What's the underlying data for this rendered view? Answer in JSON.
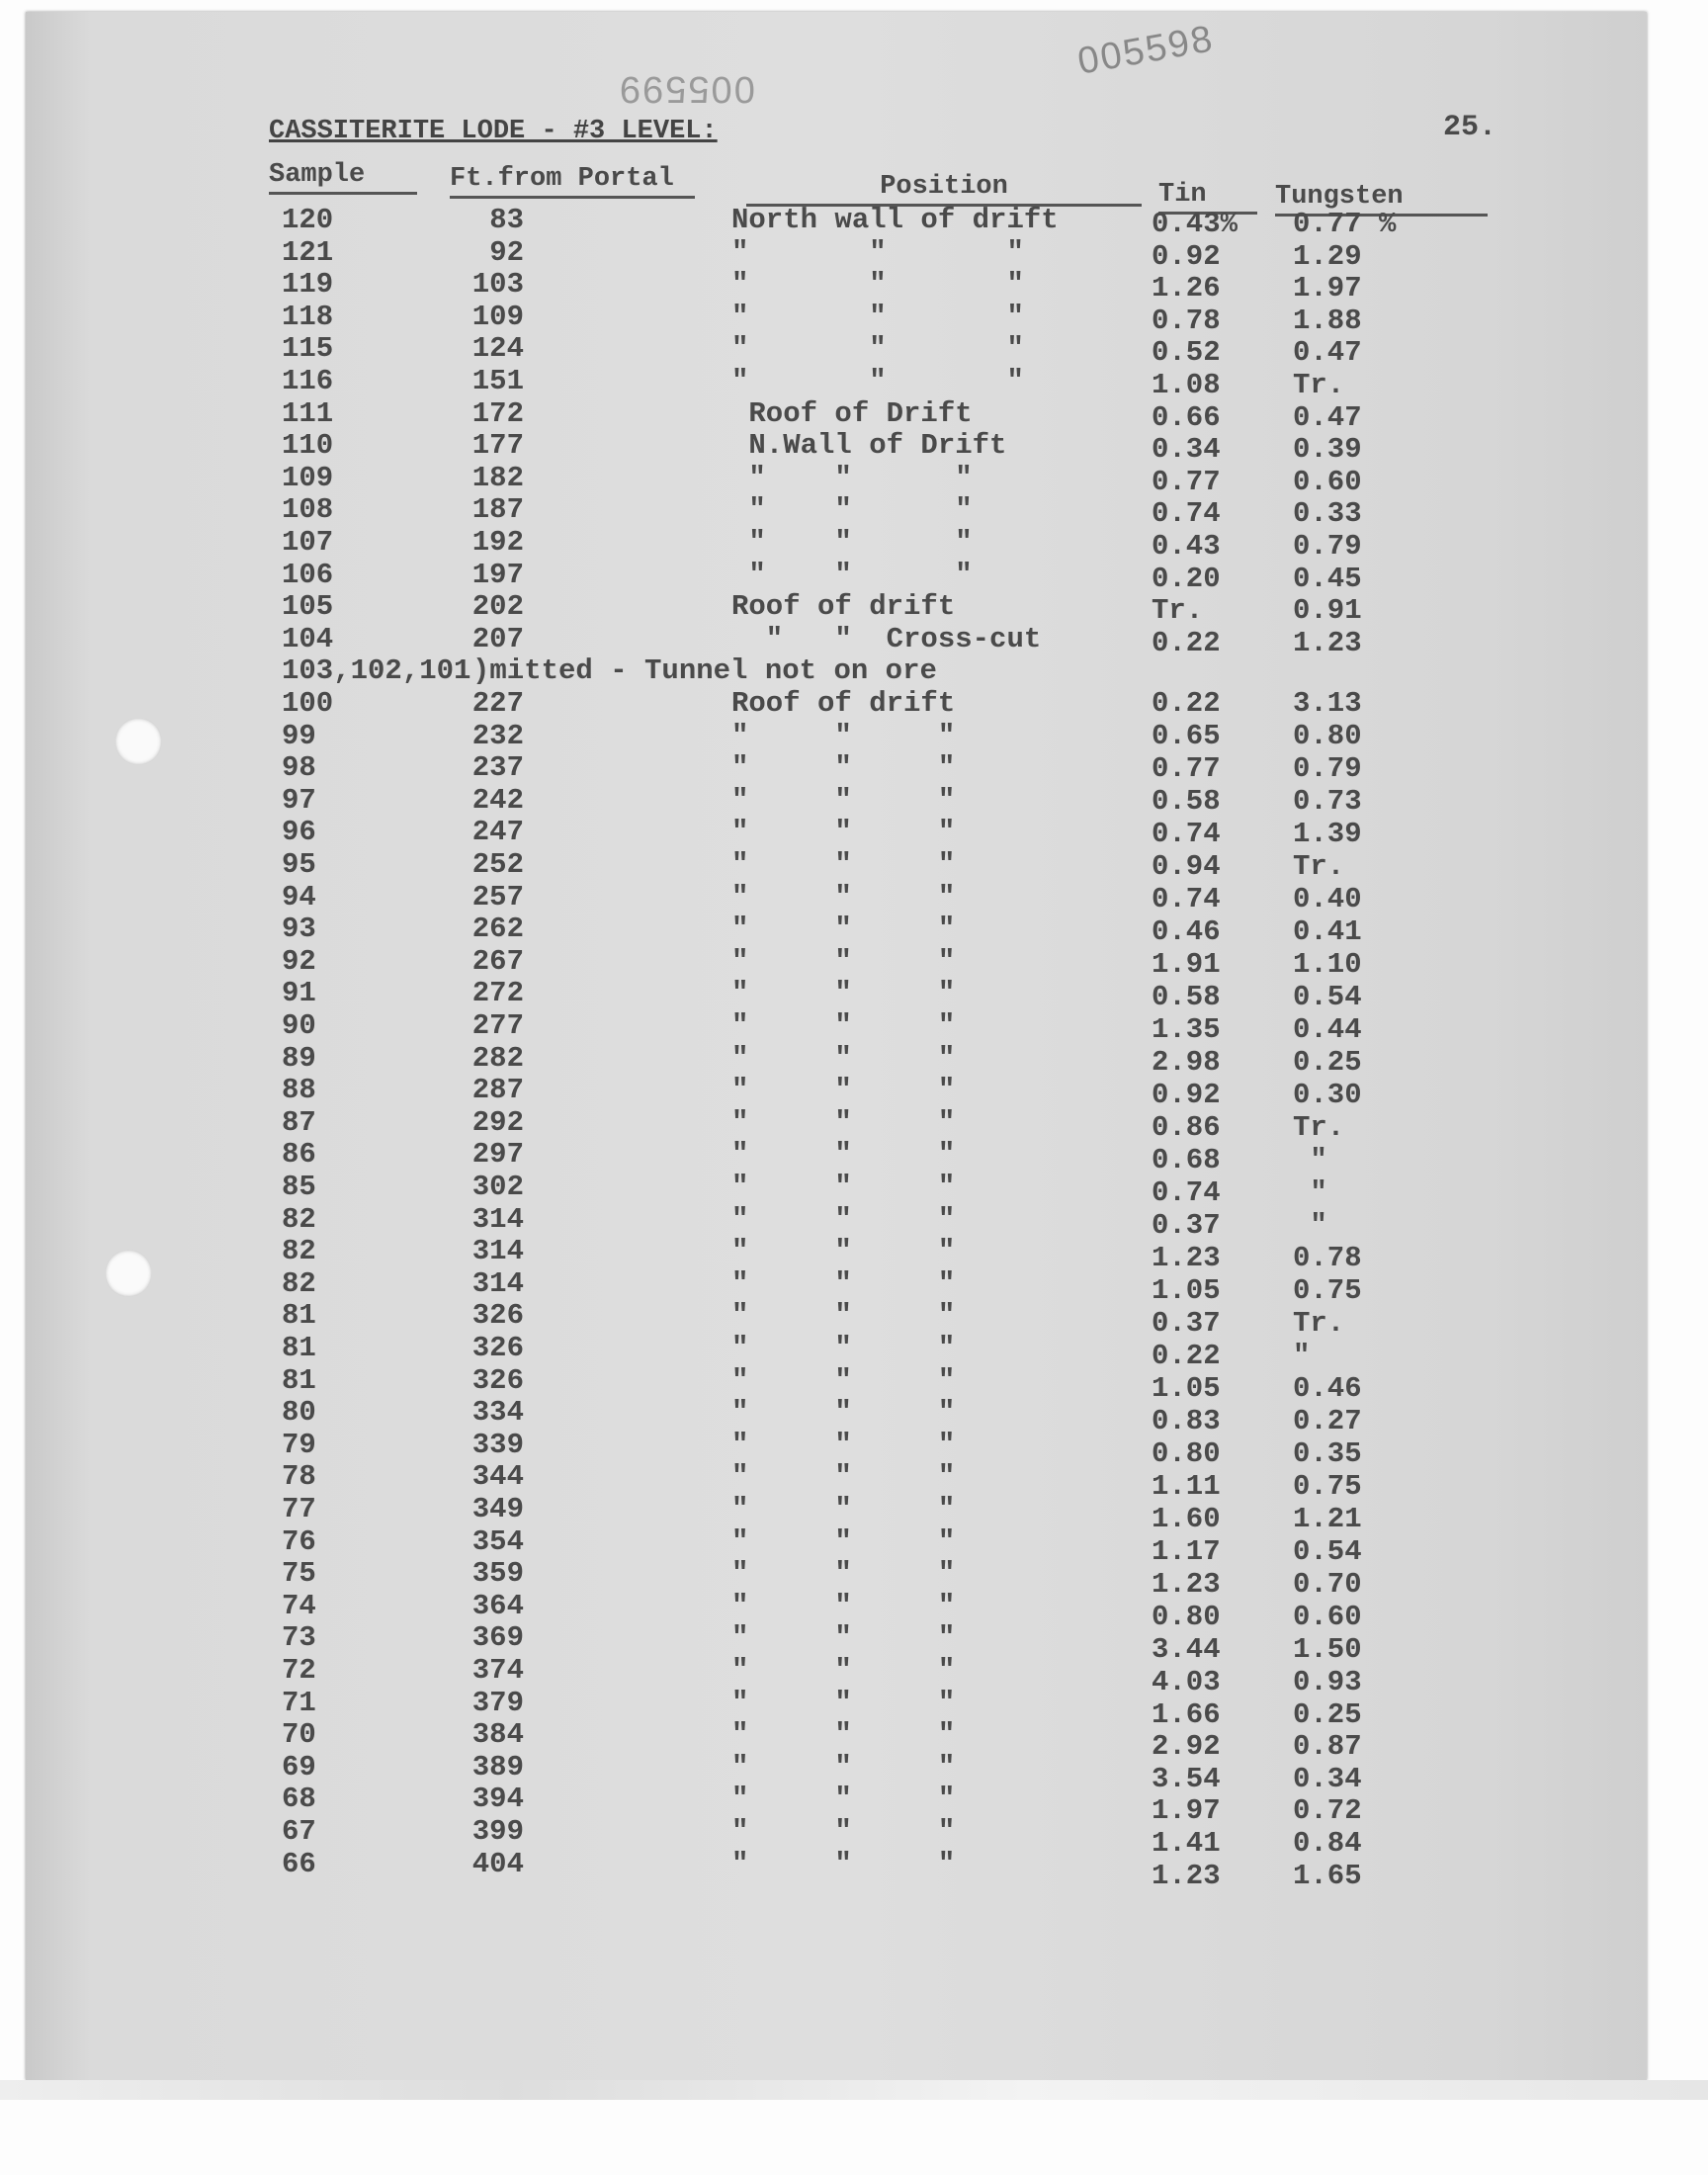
{
  "stamps": {
    "top_number": "005598",
    "mirrored_number": "005599"
  },
  "page_number": "25.",
  "title": "CASSITERITE LODE - #3 LEVEL:",
  "headers": {
    "sample": "Sample",
    "ft": "Ft.from Portal",
    "position": "Position",
    "tin": "Tin",
    "tungsten": "Tungsten"
  },
  "rows": [
    {
      "sample": "120",
      "ft": "83",
      "position": "North wall of drift",
      "tin": "0.43%",
      "tungsten": "0.77 %"
    },
    {
      "sample": "121",
      "ft": "92",
      "position": "\"       \"       \"",
      "tin": "0.92",
      "tungsten": "1.29"
    },
    {
      "sample": "119",
      "ft": "103",
      "position": "\"       \"       \"",
      "tin": "1.26",
      "tungsten": "1.97"
    },
    {
      "sample": "118",
      "ft": "109",
      "position": "\"       \"       \"",
      "tin": "0.78",
      "tungsten": "1.88"
    },
    {
      "sample": "115",
      "ft": "124",
      "position": "\"       \"       \"",
      "tin": "0.52",
      "tungsten": "0.47"
    },
    {
      "sample": "116",
      "ft": "151",
      "position": "\"       \"       \"",
      "tin": "1.08",
      "tungsten": "Tr."
    },
    {
      "sample": "111",
      "ft": "172",
      "position": " Roof of Drift",
      "tin": "0.66",
      "tungsten": "0.47"
    },
    {
      "sample": "110",
      "ft": "177",
      "position": " N.Wall of Drift",
      "tin": "0.34",
      "tungsten": "0.39"
    },
    {
      "sample": "109",
      "ft": "182",
      "position": " \"    \"      \"",
      "tin": "0.77",
      "tungsten": "0.60"
    },
    {
      "sample": "108",
      "ft": "187",
      "position": " \"    \"      \"",
      "tin": "0.74",
      "tungsten": "0.33"
    },
    {
      "sample": "107",
      "ft": "192",
      "position": " \"    \"      \"",
      "tin": "0.43",
      "tungsten": "0.79"
    },
    {
      "sample": "106",
      "ft": "197",
      "position": " \"    \"      \"",
      "tin": "0.20",
      "tungsten": "0.45"
    },
    {
      "sample": "105",
      "ft": "202",
      "position": "Roof of drift",
      "tin": "Tr.",
      "tungsten": "0.91"
    },
    {
      "sample": "104",
      "ft": "207",
      "position": "  \"   \"  Cross-cut",
      "tin": "0.22",
      "tungsten": "1.23"
    },
    {
      "sample": "103,102,101",
      "omitted": ")mitted - Tunnel not on ore"
    },
    {
      "sample": "100",
      "ft": "227",
      "position": "Roof of drift",
      "tin": "0.22",
      "tungsten": "3.13"
    },
    {
      "sample": "99",
      "ft": "232",
      "position": "\"     \"     \"",
      "tin": "0.65",
      "tungsten": "0.80"
    },
    {
      "sample": "98",
      "ft": "237",
      "position": "\"     \"     \"",
      "tin": "0.77",
      "tungsten": "0.79"
    },
    {
      "sample": "97",
      "ft": "242",
      "position": "\"     \"     \"",
      "tin": "0.58",
      "tungsten": "0.73"
    },
    {
      "sample": "96",
      "ft": "247",
      "position": "\"     \"     \"",
      "tin": "0.74",
      "tungsten": "1.39"
    },
    {
      "sample": "95",
      "ft": "252",
      "position": "\"     \"     \"",
      "tin": "0.94",
      "tungsten": "Tr."
    },
    {
      "sample": "94",
      "ft": "257",
      "position": "\"     \"     \"",
      "tin": "0.74",
      "tungsten": "0.40"
    },
    {
      "sample": "93",
      "ft": "262",
      "position": "\"     \"     \"",
      "tin": "0.46",
      "tungsten": "0.41"
    },
    {
      "sample": "92",
      "ft": "267",
      "position": "\"     \"     \"",
      "tin": "1.91",
      "tungsten": "1.10"
    },
    {
      "sample": "91",
      "ft": "272",
      "position": "\"     \"     \"",
      "tin": "0.58",
      "tungsten": "0.54"
    },
    {
      "sample": "90",
      "ft": "277",
      "position": "\"     \"     \"",
      "tin": "1.35",
      "tungsten": "0.44"
    },
    {
      "sample": "89",
      "ft": "282",
      "position": "\"     \"     \"",
      "tin": "2.98",
      "tungsten": "0.25"
    },
    {
      "sample": "88",
      "ft": "287",
      "position": "\"     \"     \"",
      "tin": "0.92",
      "tungsten": "0.30"
    },
    {
      "sample": "87",
      "ft": "292",
      "position": "\"     \"     \"",
      "tin": "0.86",
      "tungsten": "Tr."
    },
    {
      "sample": "86",
      "ft": "297",
      "position": "\"     \"     \"",
      "tin": "0.68",
      "tungsten": " \""
    },
    {
      "sample": "85",
      "ft": "302",
      "position": "\"     \"     \"",
      "tin": "0.74",
      "tungsten": " \""
    },
    {
      "sample": "82",
      "ft": "314",
      "position": "\"     \"     \"",
      "tin": "0.37",
      "tungsten": " \""
    },
    {
      "sample": "82",
      "ft": "314",
      "position": "\"     \"     \"",
      "tin": "1.23",
      "tungsten": "0.78"
    },
    {
      "sample": "82",
      "ft": "314",
      "position": "\"     \"     \"",
      "tin": "1.05",
      "tungsten": "0.75"
    },
    {
      "sample": "81",
      "ft": "326",
      "position": "\"     \"     \"",
      "tin": "0.37",
      "tungsten": "Tr."
    },
    {
      "sample": "81",
      "ft": "326",
      "position": "\"     \"     \"",
      "tin": "0.22",
      "tungsten": "\""
    },
    {
      "sample": "81",
      "ft": "326",
      "position": "\"     \"     \"",
      "tin": "1.05",
      "tungsten": "0.46"
    },
    {
      "sample": "80",
      "ft": "334",
      "position": "\"     \"     \"",
      "tin": "0.83",
      "tungsten": "0.27"
    },
    {
      "sample": "79",
      "ft": "339",
      "position": "\"     \"     \"",
      "tin": "0.80",
      "tungsten": "0.35"
    },
    {
      "sample": "78",
      "ft": "344",
      "position": "\"     \"     \"",
      "tin": "1.11",
      "tungsten": "0.75"
    },
    {
      "sample": "77",
      "ft": "349",
      "position": "\"     \"     \"",
      "tin": "1.60",
      "tungsten": "1.21"
    },
    {
      "sample": "76",
      "ft": "354",
      "position": "\"     \"     \"",
      "tin": "1.17",
      "tungsten": "0.54"
    },
    {
      "sample": "75",
      "ft": "359",
      "position": "\"     \"     \"",
      "tin": "1.23",
      "tungsten": "0.70"
    },
    {
      "sample": "74",
      "ft": "364",
      "position": "\"     \"     \"",
      "tin": "0.80",
      "tungsten": "0.60"
    },
    {
      "sample": "73",
      "ft": "369",
      "position": "\"     \"     \"",
      "tin": "3.44",
      "tungsten": "1.50"
    },
    {
      "sample": "72",
      "ft": "374",
      "position": "\"     \"     \"",
      "tin": "4.03",
      "tungsten": "0.93"
    },
    {
      "sample": "71",
      "ft": "379",
      "position": "\"     \"     \"",
      "tin": "1.66",
      "tungsten": "0.25"
    },
    {
      "sample": "70",
      "ft": "384",
      "position": "\"     \"     \"",
      "tin": "2.92",
      "tungsten": "0.87"
    },
    {
      "sample": "69",
      "ft": "389",
      "position": "\"     \"     \"",
      "tin": "3.54",
      "tungsten": "0.34"
    },
    {
      "sample": "68",
      "ft": "394",
      "position": "\"     \"     \"",
      "tin": "1.97",
      "tungsten": "0.72"
    },
    {
      "sample": "67",
      "ft": "399",
      "position": "\"     \"     \"",
      "tin": "1.41",
      "tungsten": "0.84"
    },
    {
      "sample": "66",
      "ft": "404",
      "position": "\"     \"     \"",
      "tin": "1.23",
      "tungsten": "1.65"
    }
  ]
}
